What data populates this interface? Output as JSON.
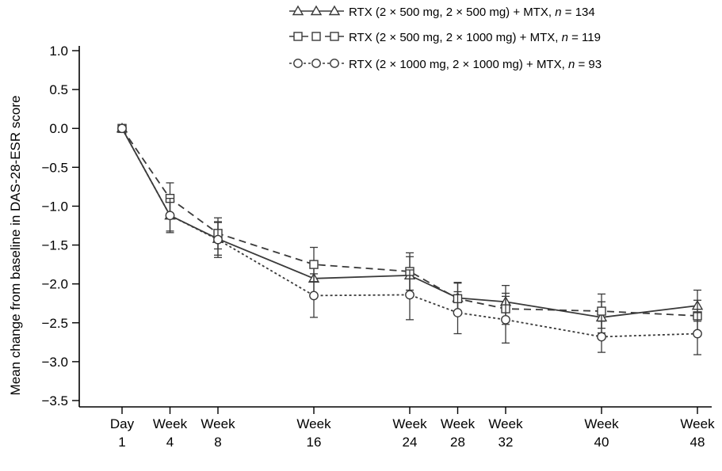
{
  "chart_data": {
    "type": "line",
    "ylabel": "Mean change from baseline in DAS-28-ESR score",
    "xlabel": "",
    "ylim": [
      -3.5,
      1.0
    ],
    "yticks": [
      1.0,
      0.5,
      0.0,
      -0.5,
      -1.0,
      -1.5,
      -2.0,
      -2.5,
      -3.0,
      -3.5
    ],
    "ytick_labels": [
      "1.0",
      "0.5",
      "0.0",
      "−0.5",
      "−1.0",
      "−1.5",
      "−2.0",
      "−2.5",
      "−3.0",
      "−3.5"
    ],
    "x": [
      0,
      4,
      8,
      16,
      24,
      28,
      32,
      40,
      48
    ],
    "xtick_labels": [
      [
        "Day",
        "1"
      ],
      [
        "Week",
        "4"
      ],
      [
        "Week",
        "8"
      ],
      [
        "Week",
        "16"
      ],
      [
        "Week",
        "24"
      ],
      [
        "Week",
        "28"
      ],
      [
        "Week",
        "32"
      ],
      [
        "Week",
        "40"
      ],
      [
        "Week",
        "48"
      ]
    ],
    "grid": false,
    "legend_position": "top-right",
    "series": [
      {
        "name": "RTX (2 × 500 mg, 2 × 500 mg) + MTX, n = 134",
        "legend_prefix": "RTX (2 × 500 mg, 2 × 500 mg) + MTX, ",
        "legend_n": "134",
        "marker": "triangle",
        "linestyle": "solid",
        "values": [
          0.0,
          -1.12,
          -1.42,
          -1.93,
          -1.89,
          -2.18,
          -2.23,
          -2.43,
          -2.28
        ],
        "err": [
          0.0,
          0.2,
          0.21,
          0.2,
          0.24,
          0.2,
          0.21,
          0.2,
          0.2
        ]
      },
      {
        "name": "RTX (2 × 500 mg, 2 × 1000 mg) + MTX, n = 119",
        "legend_prefix": "RTX (2 × 500 mg, 2 × 1000 mg) + MTX, ",
        "legend_n": "119",
        "marker": "square",
        "linestyle": "dashed",
        "values": [
          0.0,
          -0.9,
          -1.35,
          -1.75,
          -1.84,
          -2.19,
          -2.32,
          -2.35,
          -2.41
        ],
        "err": [
          0.0,
          0.2,
          0.2,
          0.22,
          0.24,
          0.2,
          0.2,
          0.22,
          0.2
        ]
      },
      {
        "name": "RTX (2 × 1000 mg, 2 × 1000 mg) + MTX, n = 93",
        "legend_prefix": "RTX (2 × 1000 mg, 2 × 1000 mg) + MTX, ",
        "legend_n": "93",
        "marker": "circle",
        "linestyle": "dotted",
        "values": [
          0.0,
          -1.12,
          -1.43,
          -2.15,
          -2.14,
          -2.37,
          -2.46,
          -2.68,
          -2.64
        ],
        "err": [
          0.0,
          0.22,
          0.23,
          0.28,
          0.32,
          0.27,
          0.3,
          0.2,
          0.27
        ]
      }
    ],
    "colors": {
      "line": "#3a3a3a",
      "marker_fill": "#ffffff",
      "axis": "#000000"
    }
  }
}
